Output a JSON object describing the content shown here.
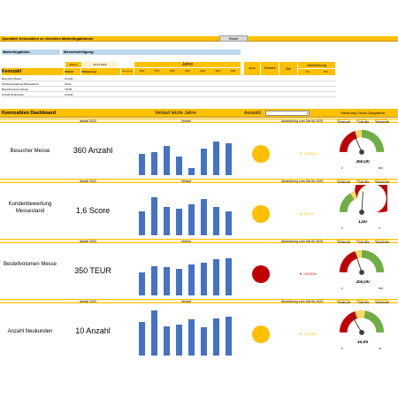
{
  "header": {
    "title": "Operative Kennzahlen zu einzelnen Marketingaktionen",
    "reset_button": "Reset"
  },
  "aktion": {
    "label": "Marketingaktion",
    "value": "Messebeteiligung"
  },
  "datum": {
    "label": "Datum",
    "value": "25.01.2023"
  },
  "kennzahl_table": {
    "title": "Kennzahl",
    "columns": [
      "Einheit",
      "Erläuterung",
      "Berechnung",
      "2016",
      "2017",
      "2018",
      "2019",
      "2020",
      "2021",
      "2022"
    ],
    "jahre_label": "Jahre",
    "mid_columns": [
      "Aktuell",
      "Toleranz",
      "Ziel"
    ],
    "abweichung_label": "Abweichung",
    "abweichung_cols": [
      "Abs",
      "Proz"
    ],
    "rows": [
      {
        "name": "Besucher Messe",
        "unit": "Anzahl",
        "desc": "",
        "calc": "",
        "years": [
          "",
          "",
          "",
          "",
          "",
          "",
          ""
        ],
        "aktuell": "",
        "tol": "",
        "ziel": "",
        "abs": "",
        "proz": ""
      },
      {
        "name": "Kundenbewertung Messestand",
        "unit": "Score",
        "desc": "",
        "calc": "",
        "years": [
          "",
          "",
          "",
          "",
          "",
          "",
          ""
        ],
        "aktuell": "",
        "tol": "",
        "ziel": "",
        "abs": "",
        "proz": ""
      },
      {
        "name": "Bestellvolumen Messe",
        "unit": "TEUR",
        "desc": "",
        "calc": "",
        "years": [
          "",
          "",
          "",
          "",
          "",
          "",
          ""
        ],
        "aktuell": "",
        "tol": "",
        "ziel": "",
        "abs": "",
        "proz": ""
      },
      {
        "name": "Anzahl Neukunden",
        "unit": "Anzahl",
        "desc": "",
        "calc": "",
        "years": [
          "",
          "",
          "",
          "",
          "",
          "",
          ""
        ],
        "aktuell": "",
        "tol": "",
        "ziel": "",
        "abs": "",
        "proz": ""
      }
    ]
  },
  "dashboard": {
    "title": "Kennzahlen Dashboard",
    "verlauf_title": "Verlauf letzte Jahre",
    "auswahl_label": "Auswahl",
    "auswahl_value": "",
    "tacho_title": "Steuerung Tacho-Diagramm",
    "strip_aktuell": "aktuell 2023",
    "strip_verlauf": "Verlauf",
    "strip_abweichung": "Abweichung zum Ziel für 2023",
    "strip_minimum": "Minimum",
    "strip_tol": "Toleranz",
    "strip_max": "Maximum",
    "colors": {
      "bar": "#4472c4",
      "accent": "#ffc000",
      "red": "#c00000",
      "green": "#70ad47",
      "amber": "#ffc000"
    },
    "cards": [
      {
        "name": "Besucher Messe",
        "value": "360 Anzahl",
        "bars": [
          0.45,
          0.48,
          0.62,
          0.38,
          0.15,
          0.55,
          0.7,
          0.67
        ],
        "status": "amber",
        "deviation": "▼ -40,00%",
        "dev_color": "#ffc000",
        "gauge_value": "360,00",
        "gauge_min": "0",
        "gauge_max": "900",
        "needle": 0.37,
        "gauge_mode": "rgy"
      },
      {
        "name": "Kundenbewertung Messestand",
        "value": "1,6 Score",
        "bars": [
          0.5,
          0.8,
          0.6,
          0.55,
          0.65,
          0.75,
          0.6,
          0.5
        ],
        "status": "amber",
        "deviation": "▲ 6,67%",
        "dev_color": "#ffc000",
        "gauge_value": "1,60",
        "gauge_min": "0",
        "gauge_max": "3",
        "needle": 0.52,
        "gauge_mode": "grr"
      },
      {
        "name": "Bestellvolumen Messe",
        "value": "350 TEUR",
        "bars": [
          0.48,
          0.62,
          0.6,
          0.55,
          0.65,
          0.68,
          0.75,
          0.78
        ],
        "status": "red",
        "deviation": "▼ -30,00%",
        "dev_color": "#c00000",
        "gauge_value": "350,00",
        "gauge_min": "0",
        "gauge_max": "900",
        "needle": 0.4,
        "gauge_mode": "rgy"
      },
      {
        "name": "Anzahl Neukunden",
        "value": "10 Anzahl",
        "bars": [
          0.7,
          0.95,
          0.62,
          0.65,
          0.75,
          0.6,
          0.78,
          0.82
        ],
        "status": "amber",
        "deviation": "▼ -33,33%",
        "dev_color": "#ffc000",
        "gauge_value": "10,00",
        "gauge_min": "0",
        "gauge_max": "30",
        "needle": 0.33,
        "gauge_mode": "ryg"
      }
    ]
  }
}
